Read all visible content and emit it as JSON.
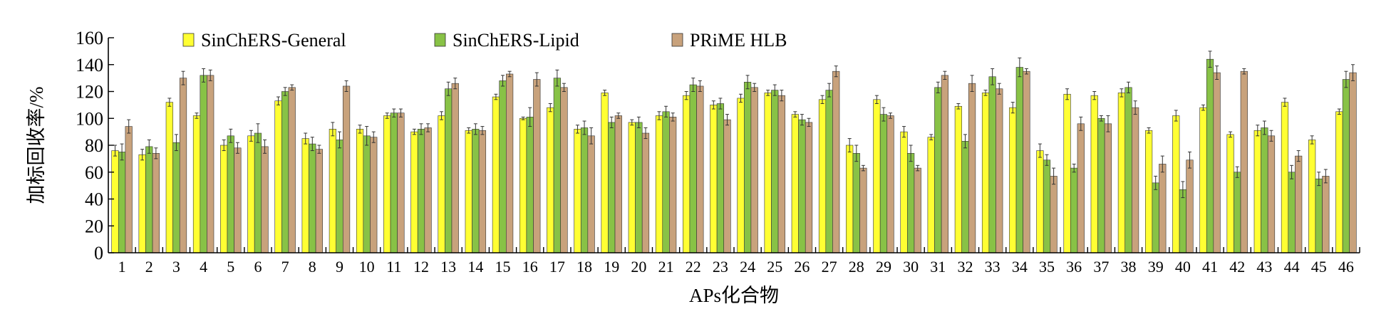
{
  "chart_data": {
    "type": "bar",
    "title": "",
    "xlabel": "APs化合物",
    "ylabel": "加标回收率/%",
    "ylim": [
      0,
      160
    ],
    "yticks": [
      0,
      20,
      40,
      60,
      80,
      100,
      120,
      140,
      160
    ],
    "legend_position": "top",
    "grid": false,
    "categories": [
      "1",
      "2",
      "3",
      "4",
      "5",
      "6",
      "7",
      "8",
      "9",
      "10",
      "11",
      "12",
      "13",
      "14",
      "15",
      "16",
      "17",
      "18",
      "19",
      "20",
      "21",
      "22",
      "23",
      "24",
      "25",
      "26",
      "27",
      "28",
      "29",
      "30",
      "31",
      "32",
      "33",
      "34",
      "35",
      "36",
      "37",
      "38",
      "39",
      "40",
      "41",
      "42",
      "43",
      "44",
      "45",
      "46"
    ],
    "series": [
      {
        "name": "SinChERS-General",
        "color": "#ffff33",
        "values": [
          76,
          73,
          112,
          102,
          80,
          87,
          113,
          85,
          92,
          92,
          102,
          90,
          102,
          91,
          116,
          100,
          108,
          92,
          119,
          97,
          102,
          117,
          110,
          115,
          119,
          103,
          114,
          80,
          114,
          90,
          86,
          109,
          119,
          108,
          76,
          118,
          117,
          119,
          91,
          102,
          108,
          88,
          91,
          112,
          84,
          105
        ],
        "errors": [
          4,
          4,
          3,
          2,
          4,
          4,
          3,
          4,
          5,
          3,
          2,
          2,
          3,
          2,
          2,
          1,
          3,
          3,
          2,
          2,
          3,
          3,
          3,
          3,
          2,
          2,
          3,
          5,
          3,
          4,
          2,
          2,
          2,
          4,
          5,
          4,
          3,
          3,
          2,
          4,
          2,
          2,
          4,
          3,
          3,
          2
        ]
      },
      {
        "name": "SinChERS-Lipid",
        "color": "#88c246",
        "values": [
          75,
          79,
          82,
          132,
          87,
          89,
          120,
          81,
          84,
          87,
          104,
          92,
          122,
          92,
          128,
          101,
          130,
          93,
          97,
          97,
          105,
          125,
          111,
          127,
          121,
          99,
          121,
          74,
          103,
          74,
          123,
          83,
          131,
          138,
          69,
          63,
          100,
          123,
          52,
          47,
          144,
          60,
          93,
          60,
          55,
          129
        ],
        "errors": [
          6,
          5,
          6,
          5,
          5,
          7,
          3,
          5,
          6,
          7,
          3,
          4,
          5,
          4,
          4,
          7,
          6,
          5,
          4,
          4,
          4,
          5,
          4,
          5,
          4,
          4,
          5,
          6,
          5,
          6,
          4,
          5,
          6,
          7,
          4,
          3,
          2,
          4,
          5,
          6,
          6,
          4,
          5,
          5,
          5,
          6
        ]
      },
      {
        "name": "PRiME HLB",
        "color": "#c8a27c",
        "values": [
          94,
          74,
          130,
          132,
          78,
          79,
          123,
          77,
          124,
          86,
          104,
          93,
          126,
          91,
          133,
          129,
          123,
          87,
          102,
          89,
          101,
          124,
          99,
          123,
          117,
          97,
          135,
          63,
          102,
          63,
          132,
          126,
          122,
          135,
          57,
          96,
          96,
          108,
          66,
          69,
          134,
          135,
          87,
          72,
          57,
          134
        ],
        "errors": [
          5,
          4,
          5,
          4,
          4,
          5,
          2,
          3,
          4,
          4,
          3,
          3,
          4,
          3,
          2,
          5,
          3,
          6,
          2,
          4,
          3,
          4,
          4,
          3,
          4,
          3,
          4,
          2,
          2,
          2,
          3,
          6,
          4,
          2,
          6,
          5,
          6,
          5,
          6,
          6,
          5,
          2,
          4,
          4,
          5,
          6
        ]
      }
    ]
  }
}
